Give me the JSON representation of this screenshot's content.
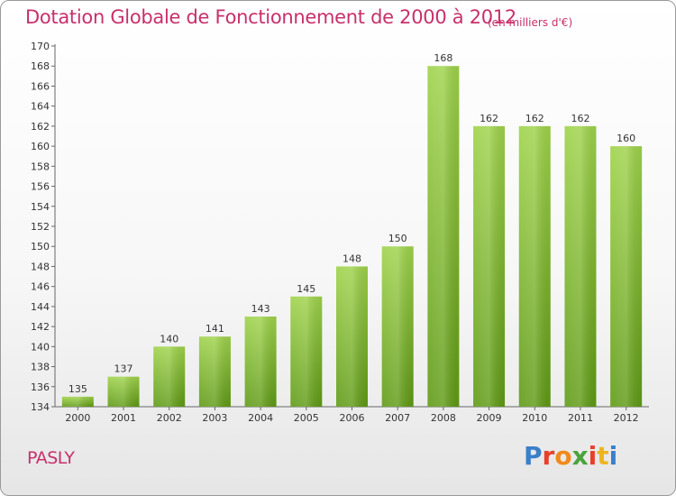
{
  "title": "Dotation Globale de Fonctionnement de 2000 à 2012",
  "subtitle": "(en milliers d'€)",
  "commune": "PASLY",
  "logo": {
    "text": "Proxiti",
    "colors": [
      "#3a7fc9",
      "#e8402a",
      "#f08a1c",
      "#4aa33c",
      "#e8402a",
      "#f0b51c",
      "#3a7fc9"
    ]
  },
  "colors": {
    "bar_top": "#9fd34b",
    "bar_bottom": "#5f9a15",
    "title": "#c8306a"
  },
  "chart_data": {
    "type": "bar",
    "title": "Dotation Globale de Fonctionnement de 2000 à 2012",
    "subtitle": "(en milliers d'€)",
    "xlabel": "",
    "ylabel": "",
    "categories": [
      "2000",
      "2001",
      "2002",
      "2003",
      "2004",
      "2005",
      "2006",
      "2007",
      "2008",
      "2009",
      "2010",
      "2011",
      "2012"
    ],
    "values": [
      135,
      137,
      140,
      141,
      143,
      145,
      148,
      150,
      168,
      162,
      162,
      162,
      160
    ],
    "ylim": [
      134,
      170
    ],
    "ytick_step": 2,
    "grid": false
  }
}
